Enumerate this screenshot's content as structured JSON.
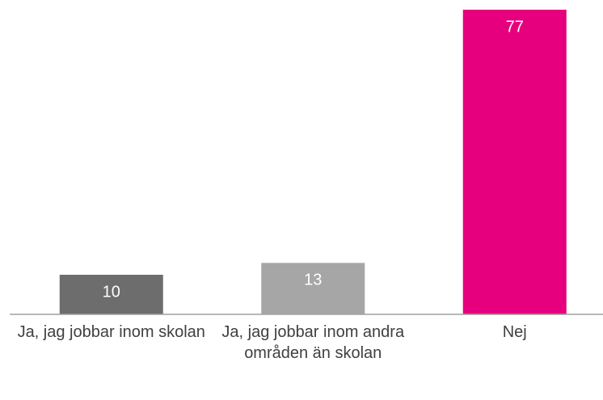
{
  "chart_data": {
    "type": "bar",
    "categories": [
      "Ja, jag jobbar inom skolan",
      "Ja, jag jobbar inom andra områden än skolan",
      "Nej"
    ],
    "values": [
      10,
      13,
      77
    ],
    "colors": [
      "#6d6d6d",
      "#a6a6a6",
      "#e6007e"
    ]
  }
}
